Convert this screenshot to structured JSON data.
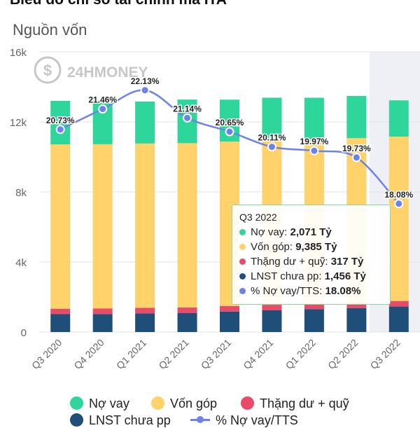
{
  "header": {
    "title": "Biểu đồ chỉ số tài chính mã ITA",
    "subtitle": "Nguồn vốn"
  },
  "watermark": {
    "text": "24HMONEY"
  },
  "chart_data": {
    "type": "bar",
    "stacked": true,
    "categories": [
      "Q3 2020",
      "Q4 2020",
      "Q1 2021",
      "Q2 2021",
      "Q3 2021",
      "Q4 2021",
      "Q1 2022",
      "Q2 2022",
      "Q3 2022"
    ],
    "y_ticks": [
      "0",
      "4k",
      "8k",
      "12k",
      "16k"
    ],
    "ylim": [
      0,
      16000
    ],
    "highlighted_category": "Q3 2022",
    "series": [
      {
        "name": "LNST chưa pp",
        "color": "#1f4e79",
        "values": [
          1020,
          1030,
          1070,
          1080,
          1170,
          1240,
          1310,
          1370,
          1456
        ]
      },
      {
        "name": "Thặng dư + quỹ",
        "color": "#e84a6a",
        "values": [
          310,
          310,
          310,
          320,
          317,
          317,
          317,
          317,
          317
        ]
      },
      {
        "name": "Vốn góp",
        "color": "#ffd26b",
        "values": [
          9385,
          9385,
          9385,
          9385,
          9385,
          9385,
          9385,
          9385,
          9385
        ]
      },
      {
        "name": "Nợ vay",
        "color": "#2fd69c",
        "values": [
          2485,
          2525,
          2395,
          2490,
          2398,
          2438,
          2368,
          2408,
          2071
        ]
      }
    ],
    "line": {
      "name": "% Nợ vay/TTS",
      "color": "#6c82e8",
      "values": [
        20.73,
        21.46,
        22.13,
        21.14,
        20.65,
        20.11,
        19.97,
        19.73,
        18.08
      ],
      "labels": [
        "20.73%",
        "21.46%",
        "22.13%",
        "21.14%",
        "20.65%",
        "20.11%",
        "19.97%",
        "19.73%",
        "18.08%"
      ],
      "range": [
        13.5,
        23.5
      ]
    },
    "legend_position": "bottom"
  },
  "tooltip": {
    "title": "Q3 2022",
    "rows": [
      {
        "label": "Nợ vay: ",
        "value": "2,071 Tỷ",
        "color": "#2fd69c"
      },
      {
        "label": "Vốn góp: ",
        "value": "9,385 Tỷ",
        "color": "#ffd26b"
      },
      {
        "label": "Thặng dư + quỹ: ",
        "value": "317 Tỷ",
        "color": "#e84a6a"
      },
      {
        "label": "LNST chưa pp: ",
        "value": "1,456 Tỷ",
        "color": "#1f4e79"
      },
      {
        "label": "% Nợ vay/TTS: ",
        "value": "18.08%",
        "color": "#6c82e8"
      }
    ]
  },
  "legend": {
    "items": [
      {
        "label": "Nợ vay",
        "color": "#2fd69c",
        "kind": "dot"
      },
      {
        "label": "Vốn góp",
        "color": "#ffd26b",
        "kind": "dot"
      },
      {
        "label": "Thặng dư + quỹ",
        "color": "#e84a6a",
        "kind": "dot"
      },
      {
        "label": "LNST chưa pp",
        "color": "#1f4e79",
        "kind": "dot"
      },
      {
        "label": "% Nợ vay/TTS",
        "color": "#6c82e8",
        "kind": "line"
      }
    ]
  }
}
